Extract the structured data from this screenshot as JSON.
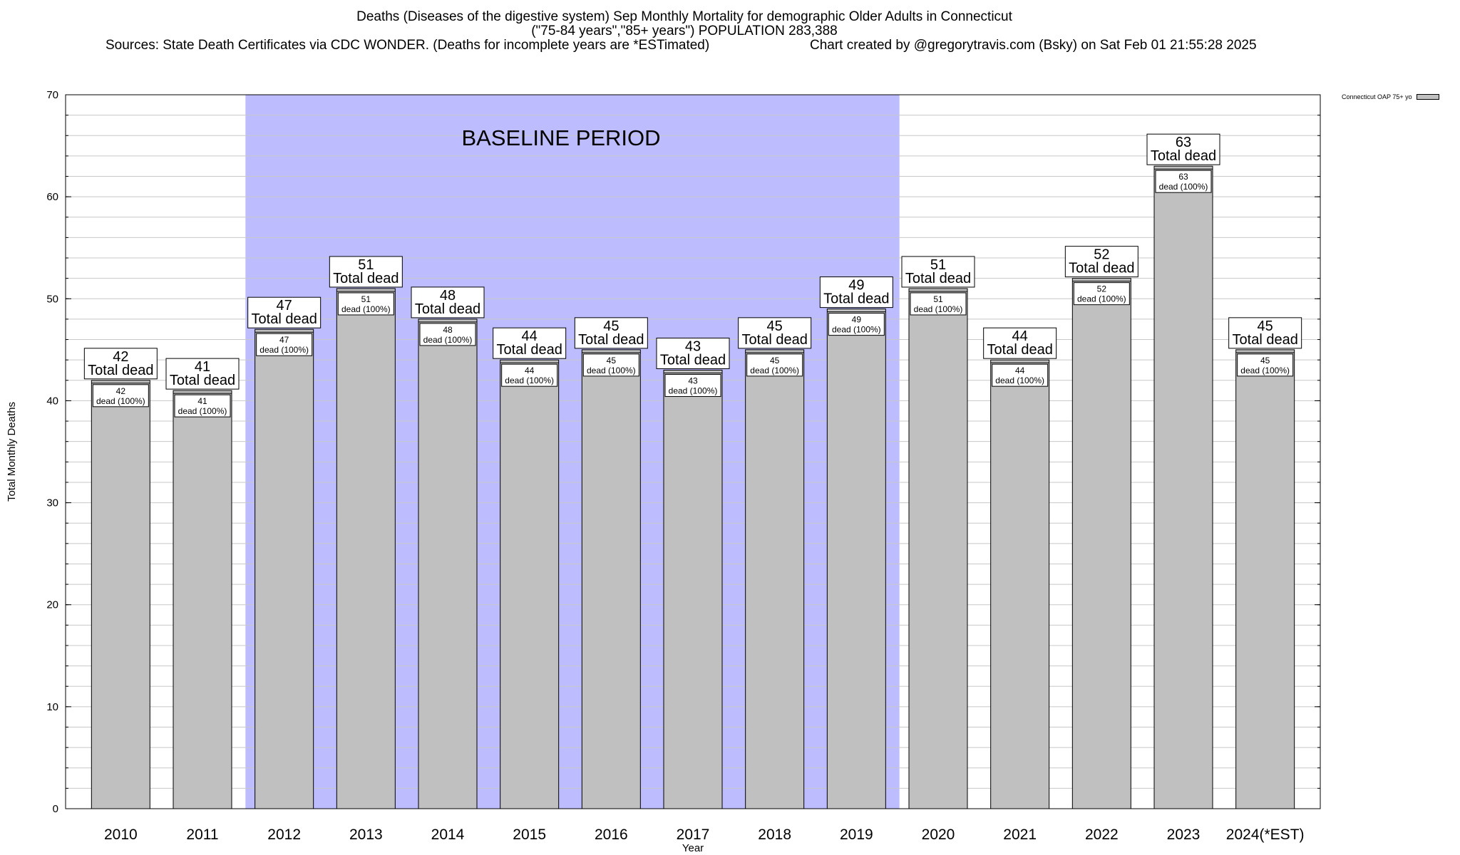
{
  "header": {
    "title_line1": "Deaths (Diseases of the digestive system) Sep Monthly Mortality for demographic Older Adults in Connecticut",
    "title_line2": "(\"75-84 years\",\"85+ years\") POPULATION 283,388",
    "sources": "Sources: State Death Certificates via CDC WONDER. (Deaths for incomplete years are *ESTimated)",
    "credit": "Chart created by @gregorytravis.com (Bsky) on Sat Feb 01 21:55:28 2025"
  },
  "chart_data": {
    "type": "bar",
    "categories": [
      "2010",
      "2011",
      "2012",
      "2013",
      "2014",
      "2015",
      "2016",
      "2017",
      "2018",
      "2019",
      "2020",
      "2021",
      "2022",
      "2023",
      "2024(*EST)"
    ],
    "series": [
      {
        "name": "Connecticut OAP 75+ yo",
        "values": [
          42,
          41,
          47,
          51,
          48,
          44,
          45,
          43,
          45,
          49,
          51,
          44,
          52,
          63,
          45
        ]
      }
    ],
    "total_label_suffix": "Total dead",
    "inner_label_suffix": "dead (100%)",
    "xlabel": "Year",
    "ylabel": "Total Monthly Deaths",
    "ylim": [
      0,
      70
    ],
    "yticks": [
      0,
      10,
      20,
      30,
      40,
      50,
      60,
      70
    ],
    "baseline": {
      "label": "BASELINE PERIOD",
      "start": "2012",
      "end": "2019"
    },
    "grid": true,
    "legend_position": "top-right"
  },
  "colors": {
    "bar_fill": "#c0c0c0",
    "baseline_fill": "#bcbcff",
    "axis": "#000000",
    "grid": "#c8c8c8"
  }
}
